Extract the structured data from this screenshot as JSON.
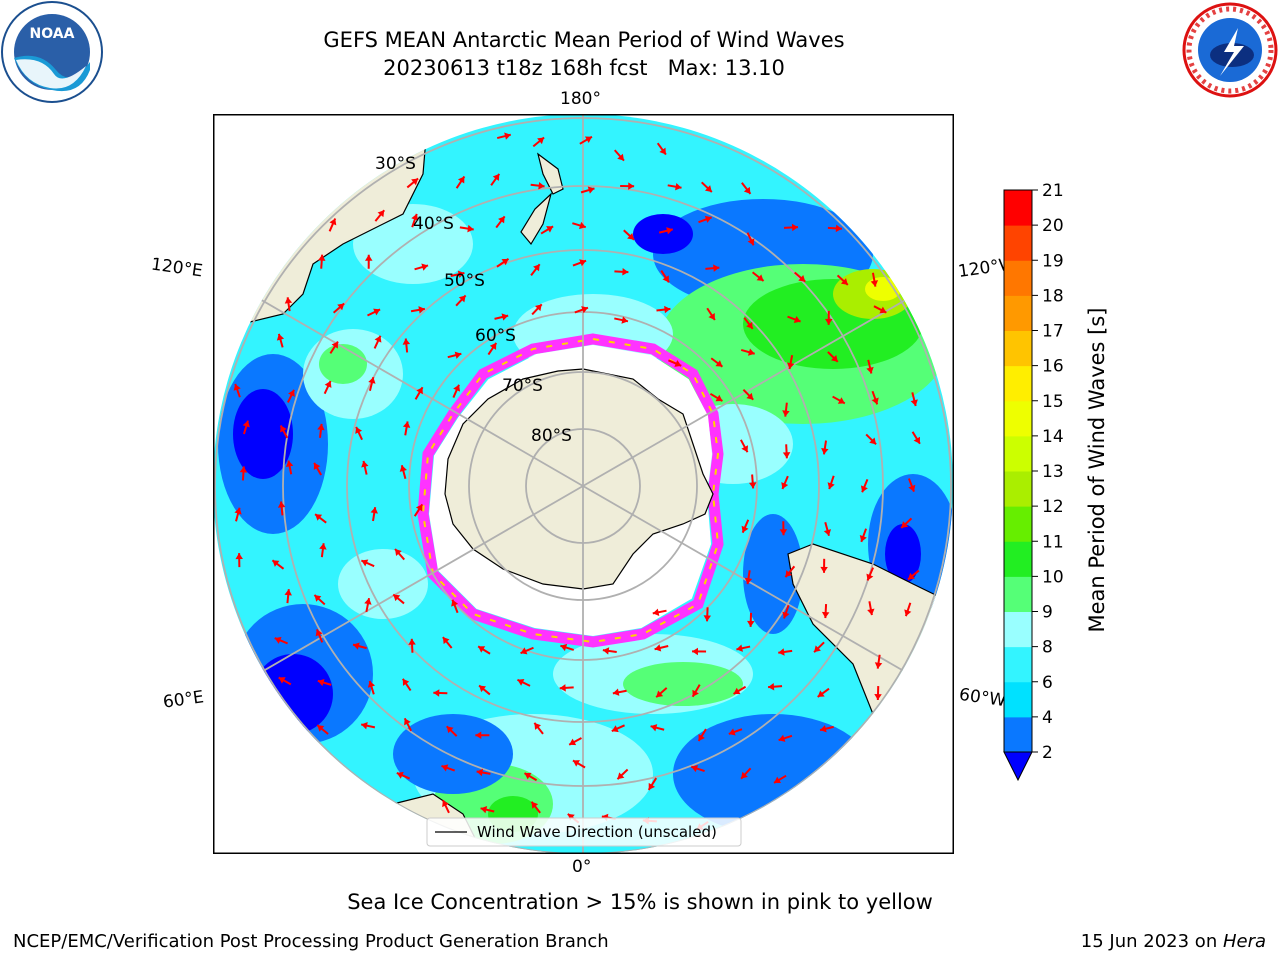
{
  "header": {
    "title_line1": "GEFS MEAN Antarctic Mean Period of Wind Waves",
    "title_line2": "20230613 t18z 168h fcst   Max: 13.10"
  },
  "logos": {
    "left": {
      "name": "noaa-logo",
      "text": "NOAA",
      "ring_text": "NATIONAL OCEANIC AND ATMOSPHERIC ADMINISTRATION · U.S. DEPARTMENT OF COMMERCE"
    },
    "right": {
      "name": "nws-logo",
      "ring_text": "NATIONAL WEATHER SERVICE"
    }
  },
  "map": {
    "projection": "south-polar-stereographic",
    "longitude_labels": {
      "top": "180°",
      "bottom": "0°",
      "left_upper": "120°E",
      "left_lower": "60°E",
      "right_upper": "120°W",
      "right_lower": "60°W"
    },
    "latitude_labels": [
      "30°S",
      "40°S",
      "50°S",
      "60°S",
      "70°S",
      "80°S"
    ],
    "legend_entry": "Wind Wave Direction (unscaled)",
    "colors": {
      "land": "#efedd9",
      "gridlines": "#b0b0b0",
      "arrows": "#ff0000",
      "sea_ice_low": "#ff33ff",
      "sea_ice_high": "#ffd400"
    }
  },
  "chart_data": {
    "type": "heatmap",
    "variable": "Mean Period of Wind Waves",
    "max_value": 13.1,
    "colorbar": {
      "label": "Mean Period of Wind Waves [s]",
      "ticks": [
        "2",
        "4",
        "6",
        "8",
        "9",
        "10",
        "11",
        "12",
        "13",
        "14",
        "15",
        "16",
        "17",
        "18",
        "19",
        "20",
        "21"
      ],
      "levels": [
        2,
        4,
        6,
        8,
        9,
        10,
        11,
        12,
        13,
        14,
        15,
        16,
        17,
        18,
        19,
        20,
        21
      ],
      "colors": [
        "#0a78ff",
        "#00e1ff",
        "#33f4ff",
        "#99ffff",
        "#55ff77",
        "#22ee22",
        "#66ee00",
        "#aaee00",
        "#ccff00",
        "#eeff00",
        "#ffee00",
        "#ffc400",
        "#ff9900",
        "#ff7700",
        "#ff4400",
        "#ff0000"
      ],
      "under_color": "#0000ff",
      "extend": "min"
    }
  },
  "footer": {
    "caption": "Sea Ice Concentration > 15% is shown in pink to yellow",
    "left": "NCEP/EMC/Verification Post Processing Product Generation Branch",
    "right_prefix": "15 Jun 2023 on ",
    "right_machine": "Hera"
  }
}
